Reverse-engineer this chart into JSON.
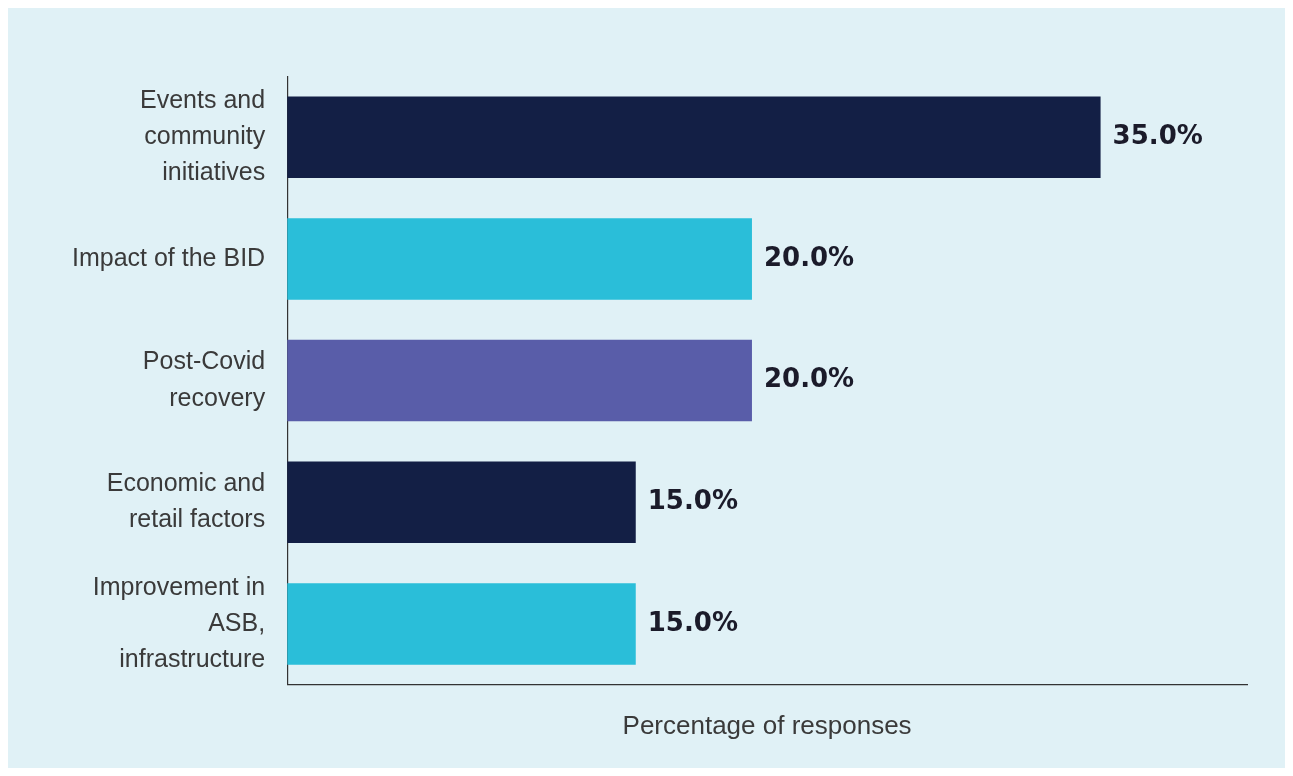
{
  "chart_data": {
    "type": "bar",
    "orientation": "horizontal",
    "xlabel": "Percentage of responses",
    "categories": [
      "Events and community initiatives",
      "Impact of the BID",
      "Post-Covid recovery",
      "Economic and retail factors",
      "Improvement in ASB, infrastructure"
    ],
    "values": [
      35,
      20,
      20,
      15,
      15
    ],
    "colors": [
      "#131f45",
      "#2abed9",
      "#595da9",
      "#131f45",
      "#2abed9"
    ],
    "value_labels": [
      "35.0%",
      "20.0%",
      "20.0%",
      "15.0%",
      "15.0%"
    ],
    "grid": false,
    "legend": false
  }
}
